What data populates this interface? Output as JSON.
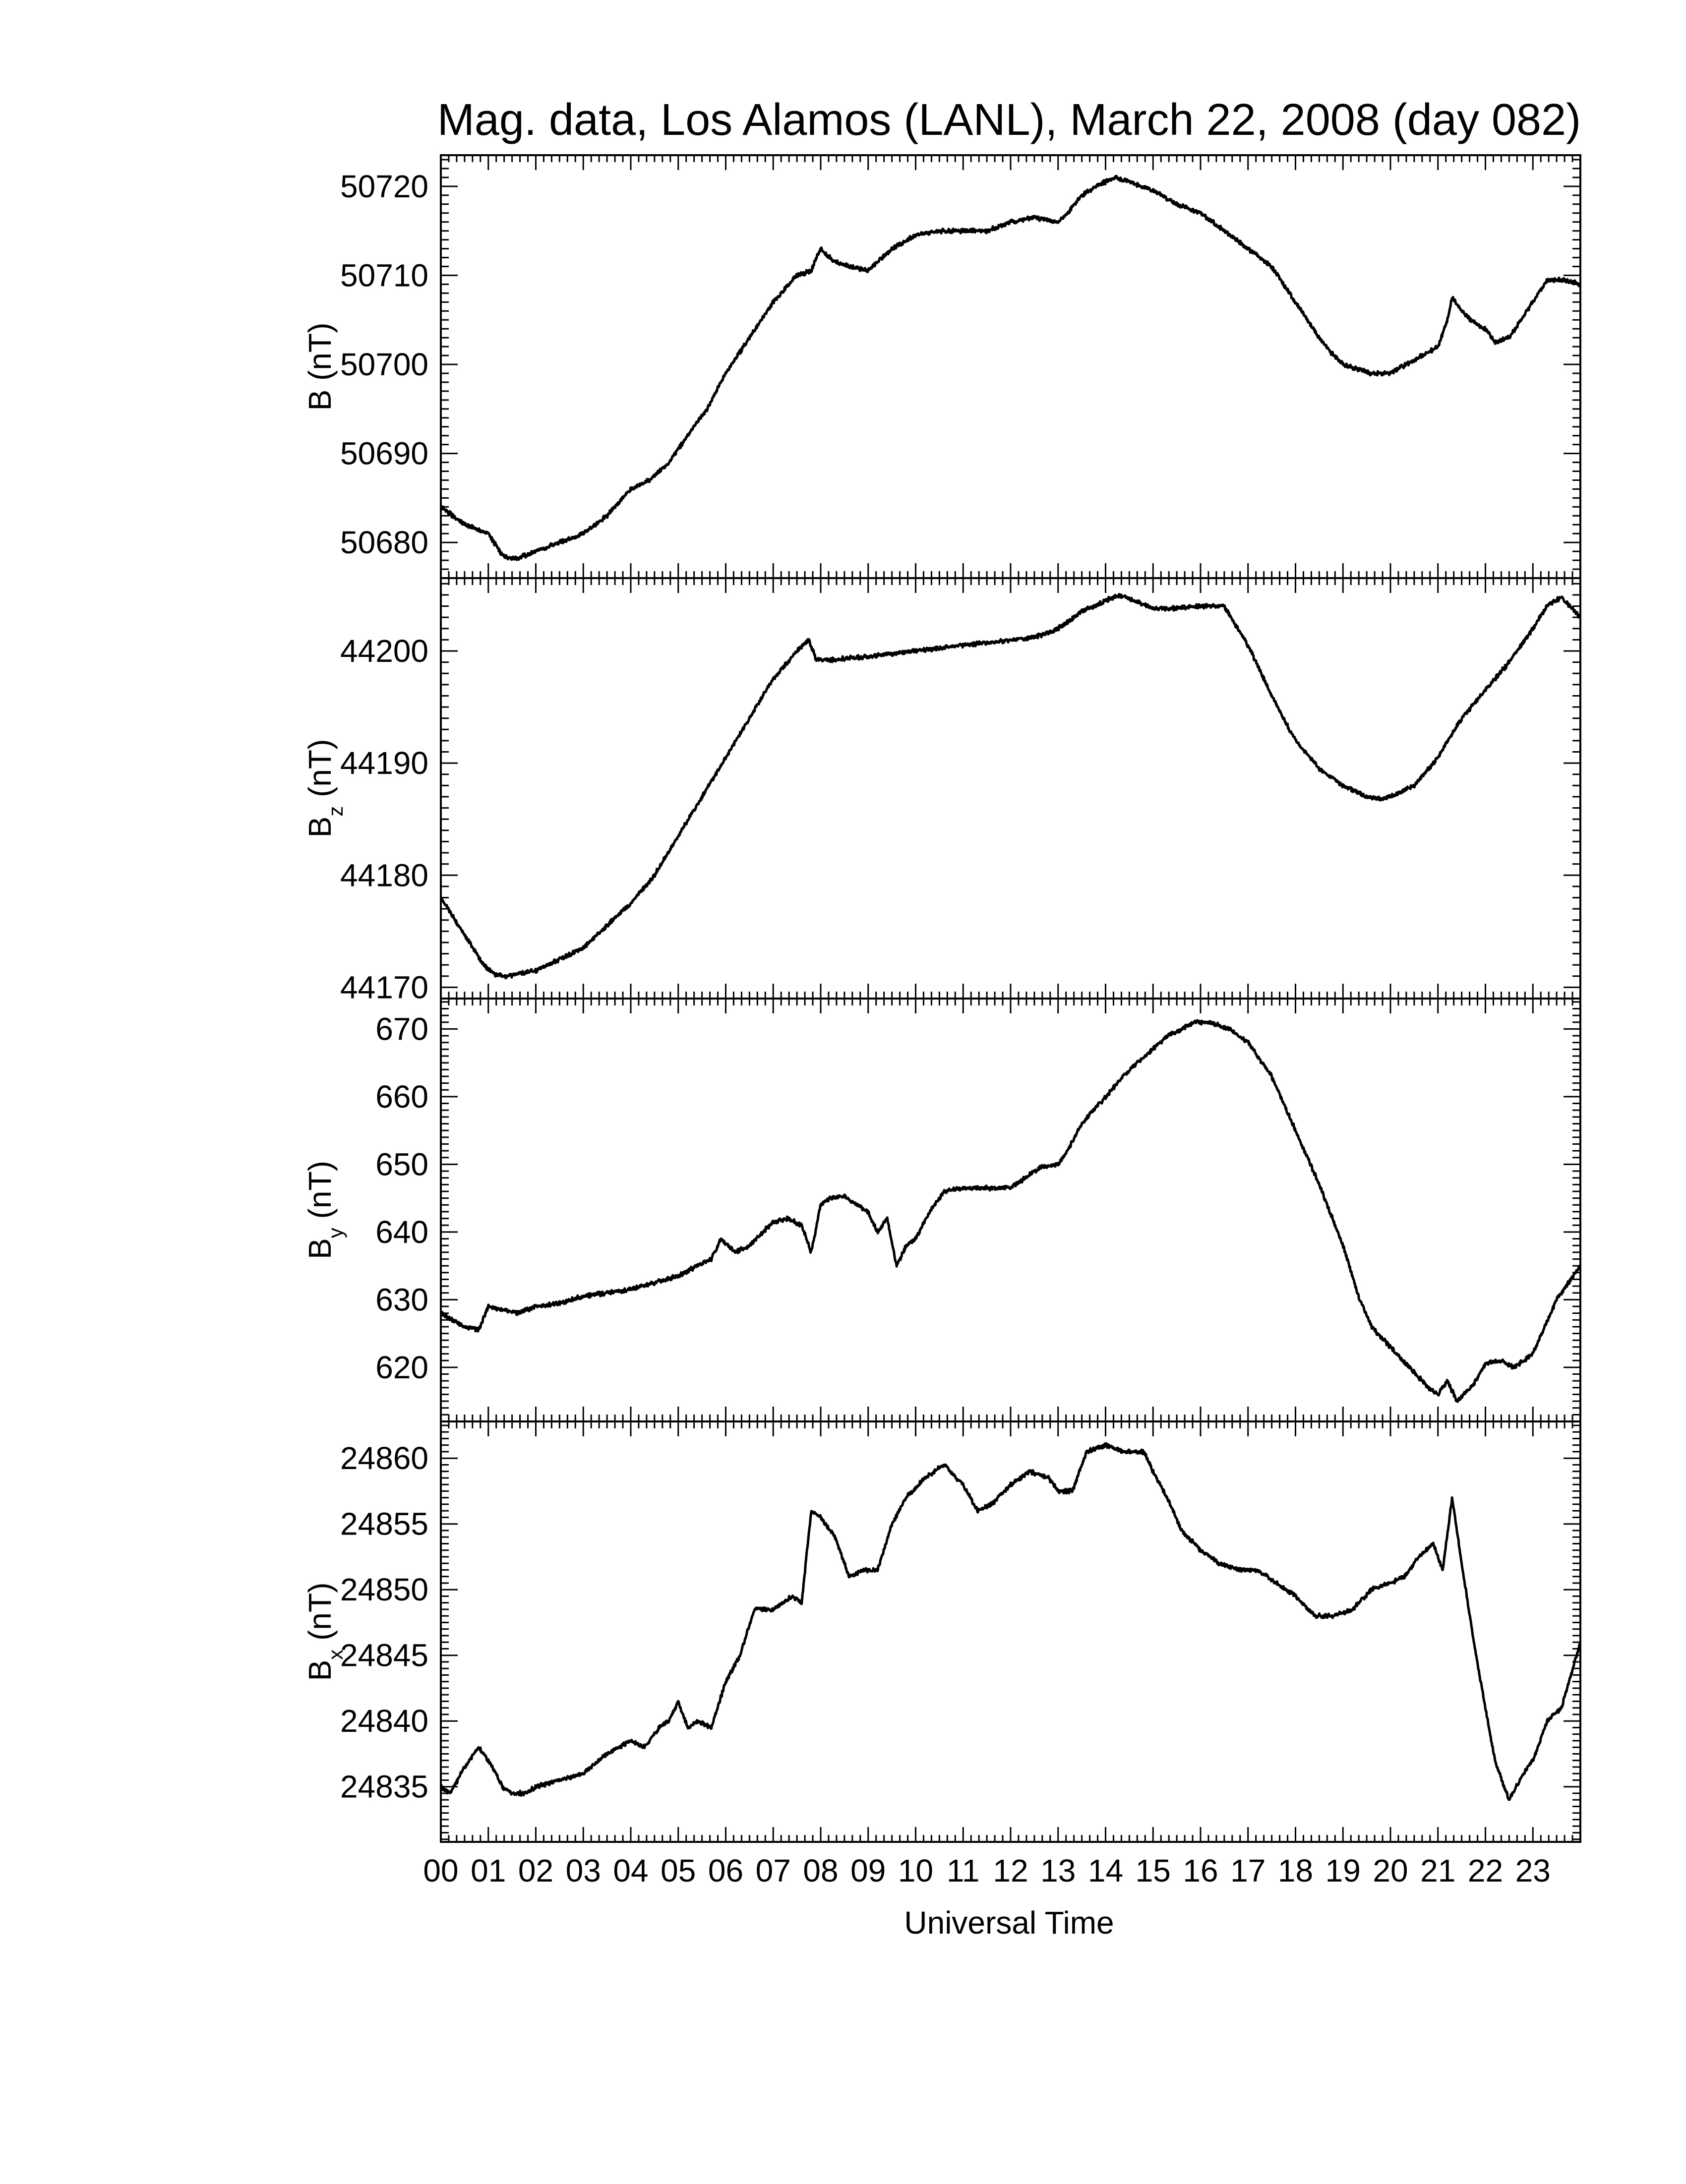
{
  "title": "Mag. data, Los Alamos (LANL), March 22, 2008 (day 082)",
  "xlabel": "Universal Time",
  "line_color": "#000000",
  "chart_data": {
    "type": "line",
    "x_unit": "hours UT",
    "xlim": [
      0,
      24
    ],
    "x_ticks": [
      0,
      1,
      2,
      3,
      4,
      5,
      6,
      7,
      8,
      9,
      10,
      11,
      12,
      13,
      14,
      15,
      16,
      17,
      18,
      19,
      20,
      21,
      22,
      23
    ],
    "x_tick_labels": [
      "00",
      "01",
      "02",
      "03",
      "04",
      "05",
      "06",
      "07",
      "08",
      "09",
      "10",
      "11",
      "12",
      "13",
      "14",
      "15",
      "16",
      "17",
      "18",
      "19",
      "20",
      "21",
      "22",
      "23"
    ],
    "panels": [
      {
        "ylabel": "B",
        "ylabel_sub": "",
        "ylabel_unit": "(nT)",
        "ylim": [
          50676,
          50723.5
        ],
        "y_ticks": [
          50680,
          50690,
          50700,
          50710,
          50720
        ],
        "series": [
          {
            "x": [
              0,
              0.5,
              1,
              1.3,
              1.6,
              2,
              2.5,
              3,
              3.5,
              4,
              4.4,
              4.8,
              5.2,
              5.6,
              6,
              6.5,
              7,
              7.5,
              7.8,
              8,
              8.3,
              8.6,
              9,
              9.2,
              9.5,
              10,
              10.5,
              11,
              11.5,
              12,
              12.5,
              13,
              13.2,
              13.5,
              13.8,
              14,
              14.2,
              14.5,
              15,
              15.5,
              16,
              16.5,
              17,
              17.5,
              18,
              18.5,
              18.8,
              19,
              19.3,
              19.6,
              20,
              20.5,
              21,
              21.2,
              21.3,
              21.5,
              21.8,
              22,
              22.2,
              22.5,
              23,
              23.3,
              23.6,
              24
            ],
            "y": [
              50684,
              50682,
              50681,
              50678.5,
              50678.2,
              50679,
              50680,
              50681,
              50683,
              50686,
              50687,
              50689,
              50692,
              50695,
              50699,
              50703,
              50707,
              50710,
              50710.5,
              50713,
              50711.5,
              50711,
              50710.5,
              50711.5,
              50713,
              50714.5,
              50715,
              50715,
              50715,
              50716,
              50716.5,
              50716,
              50717,
              50719,
              50720,
              50720.5,
              50721,
              50720.5,
              50719.5,
              50718,
              50717,
              50715,
              50713,
              50711,
              50707,
              50703,
              50701,
              50700,
              50699.5,
              50699,
              50699,
              50700.5,
              50702,
              50705,
              50707.5,
              50706,
              50704.5,
              50704,
              50702.5,
              50703,
              50707,
              50709.5,
              50709.5,
              50709
            ]
          }
        ]
      },
      {
        "ylabel": "B",
        "ylabel_sub": "z",
        "ylabel_unit": "(nT)",
        "ylim": [
          44169,
          44206.5
        ],
        "y_ticks": [
          44170,
          44180,
          44190,
          44200
        ],
        "series": [
          {
            "x": [
              0,
              0.3,
              0.6,
              0.9,
              1.1,
              1.4,
              2,
              2.5,
              3,
              3.5,
              4,
              4.5,
              5,
              5.5,
              6,
              6.5,
              7,
              7.5,
              7.75,
              7.9,
              8.2,
              9,
              10,
              11,
              12,
              12.5,
              13,
              13.5,
              14,
              14.3,
              14.6,
              15,
              15.5,
              16,
              16.5,
              17,
              17.5,
              18,
              18.5,
              19,
              19.5,
              19.8,
              20,
              20.5,
              21,
              21.5,
              22,
              22.5,
              23,
              23.3,
              23.6,
              24
            ],
            "y": [
              44178,
              44176,
              44174,
              44172,
              44171.2,
              44171,
              44171.5,
              44172.5,
              44173.5,
              44175.5,
              44177.5,
              44180,
              44183.5,
              44187,
              44190.5,
              44194,
              44197.5,
              44200,
              44201,
              44199.3,
              44199.2,
              44199.5,
              44200,
              44200.5,
              44201,
              44201.2,
              44202,
              44203.5,
              44204.5,
              44205,
              44204.5,
              44203.8,
              44203.8,
              44204,
              44204,
              44200.5,
              44196,
              44192,
              44189.5,
              44188,
              44187,
              44186.8,
              44187,
              44188,
              44190.5,
              44194,
              44196.5,
              44199,
              44202,
              44204,
              44204.8,
              44203
            ]
          }
        ]
      },
      {
        "ylabel": "B",
        "ylabel_sub": "y",
        "ylabel_unit": "(nT)",
        "ylim": [
          612,
          674.5
        ],
        "y_ticks": [
          620,
          630,
          640,
          650,
          660,
          670
        ],
        "series": [
          {
            "x": [
              0,
              0.5,
              0.8,
              1,
              1.3,
              1.6,
              2,
              2.5,
              3,
              3.5,
              4,
              4.5,
              5,
              5.4,
              5.7,
              5.9,
              6.2,
              6.5,
              7,
              7.3,
              7.6,
              7.8,
              8,
              8.2,
              8.5,
              9,
              9.2,
              9.4,
              9.6,
              9.8,
              10,
              10.3,
              10.6,
              11,
              11.5,
              12,
              12.3,
              12.6,
              13,
              13.2,
              13.5,
              14,
              14.5,
              15,
              15.3,
              15.6,
              15.9,
              16.2,
              16.6,
              17,
              17.5,
              18,
              18.5,
              19,
              19.3,
              19.6,
              20,
              20.4,
              20.8,
              21,
              21.2,
              21.4,
              21.7,
              22,
              22.3,
              22.6,
              23,
              23.5,
              24
            ],
            "y": [
              628,
              626,
              625.5,
              629,
              628.5,
              628,
              629,
              629.5,
              630.5,
              631,
              631.5,
              632.5,
              633.5,
              635,
              636,
              639,
              637,
              638,
              641.5,
              642,
              641,
              637,
              644,
              645,
              645.2,
              643,
              640,
              642,
              635,
              638,
              639,
              643,
              646,
              646.5,
              646.5,
              646.5,
              648,
              649.5,
              650,
              652,
              656,
              660,
              664,
              667,
              669,
              670,
              671,
              671,
              670,
              668,
              663,
              655,
              647,
              638,
              631,
              626,
              623,
              620,
              617,
              616,
              618,
              615,
              617,
              620.5,
              621,
              620,
              622,
              630,
              635
            ]
          }
        ]
      },
      {
        "ylabel": "B",
        "ylabel_sub": "x",
        "ylabel_unit": "(nT)",
        "ylim": [
          24830.8,
          24862.8
        ],
        "y_ticks": [
          24835,
          24840,
          24845,
          24850,
          24855,
          24860
        ],
        "series": [
          {
            "x": [
              0,
              0.2,
              0.5,
              0.8,
              1,
              1.3,
              1.5,
              1.8,
              2,
              2.5,
              3,
              3.5,
              4,
              4.3,
              4.6,
              4.8,
              5,
              5.2,
              5.4,
              5.7,
              6,
              6.3,
              6.6,
              7,
              7.4,
              7.6,
              7.8,
              8,
              8.3,
              8.6,
              8.9,
              9.2,
              9.5,
              9.8,
              10.2,
              10.6,
              11,
              11.3,
              11.6,
              12,
              12.4,
              12.8,
              13,
              13.3,
              13.6,
              14,
              14.4,
              14.8,
              15,
              15.3,
              15.6,
              16,
              16.4,
              16.8,
              17.2,
              17.6,
              18,
              18.4,
              18.8,
              19.2,
              19.6,
              20,
              20.3,
              20.6,
              20.9,
              21.1,
              21.3,
              21.5,
              21.8,
              22,
              22.2,
              22.5,
              22.8,
              23,
              23.3,
              23.6,
              24
            ],
            "y": [
              24835,
              24834.5,
              24836.5,
              24838,
              24837,
              24835,
              24834.5,
              24834.5,
              24835,
              24835.5,
              24836,
              24837.5,
              24838.5,
              24838,
              24839.5,
              24840,
              24841.5,
              24839.5,
              24840,
              24839.5,
              24843,
              24845,
              24848.5,
              24848.5,
              24849.5,
              24849,
              24856,
              24855.5,
              24854,
              24851,
              24851.5,
              24851.5,
              24855,
              24857,
              24858.5,
              24859.5,
              24858,
              24856,
              24856.5,
              24858,
              24859,
              24858.5,
              24857.5,
              24857.5,
              24860.5,
              24861,
              24860.5,
              24860.5,
              24859,
              24857,
              24854.5,
              24853,
              24852,
              24851.5,
              24851.5,
              24850.5,
              24849.5,
              24848,
              24848,
              24848.5,
              24850,
              24850.5,
              24851,
              24852.5,
              24853.5,
              24851.5,
              24857,
              24852,
              24845,
              24841,
              24837,
              24834,
              24836,
              24837,
              24840,
              24841,
              24846
            ]
          }
        ]
      }
    ]
  }
}
